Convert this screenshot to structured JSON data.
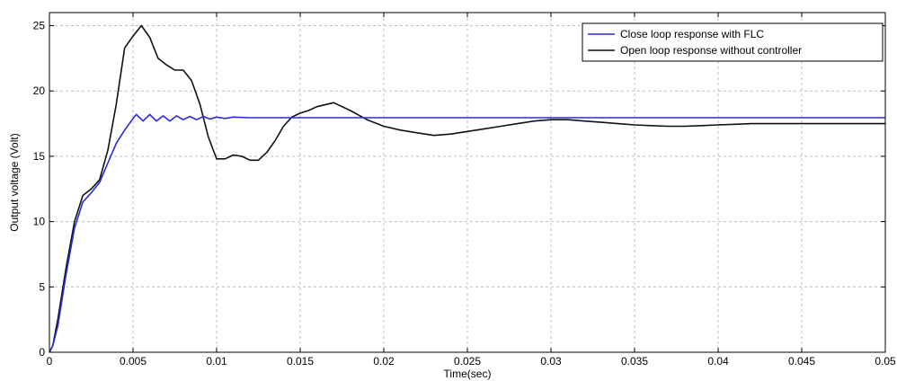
{
  "chart_data": {
    "type": "line",
    "xlabel": "Time(sec)",
    "ylabel": "Output voltage (Volt)",
    "xlim": [
      0,
      0.05
    ],
    "ylim": [
      0,
      26
    ],
    "x_ticks": [
      0,
      0.005,
      0.01,
      0.015,
      0.02,
      0.025,
      0.03,
      0.035,
      0.04,
      0.045,
      0.05
    ],
    "x_tick_labels": [
      "0",
      "0.005",
      "0.01",
      "0.015",
      "0.02",
      "0.025",
      "0.03",
      "0.035",
      "0.04",
      "0.045",
      "0.05"
    ],
    "y_ticks": [
      0,
      5,
      10,
      15,
      20,
      25
    ],
    "y_tick_labels": [
      "0",
      "5",
      "10",
      "15",
      "20",
      "25"
    ],
    "grid": true,
    "legend_position": "top-right",
    "series": [
      {
        "name": "Close loop response with FLC",
        "color": "#2b2bd6",
        "x": [
          0,
          0.0002,
          0.0005,
          0.001,
          0.0015,
          0.002,
          0.0025,
          0.003,
          0.0035,
          0.004,
          0.0045,
          0.005,
          0.0052,
          0.0056,
          0.006,
          0.0064,
          0.0068,
          0.0072,
          0.0076,
          0.008,
          0.0084,
          0.0088,
          0.0092,
          0.0096,
          0.01,
          0.0105,
          0.011,
          0.012,
          0.015,
          0.02,
          0.025,
          0.03,
          0.035,
          0.04,
          0.045,
          0.05
        ],
        "y": [
          0,
          0.5,
          2,
          6,
          9.5,
          11.5,
          12.2,
          13,
          14.5,
          16,
          17,
          17.9,
          18.2,
          17.7,
          18.2,
          17.7,
          18.1,
          17.7,
          18.1,
          17.8,
          18.05,
          17.8,
          18.05,
          17.85,
          18,
          17.9,
          18,
          17.95,
          17.95,
          17.95,
          17.95,
          17.95,
          17.95,
          17.95,
          17.95,
          17.95
        ]
      },
      {
        "name": "Open loop response without controller",
        "color": "#111111",
        "x": [
          0,
          0.0002,
          0.0005,
          0.001,
          0.0015,
          0.002,
          0.0025,
          0.003,
          0.0035,
          0.004,
          0.0045,
          0.005,
          0.0055,
          0.006,
          0.0065,
          0.007,
          0.0075,
          0.008,
          0.0085,
          0.009,
          0.0095,
          0.01,
          0.0105,
          0.011,
          0.0115,
          0.012,
          0.0125,
          0.013,
          0.0135,
          0.014,
          0.0145,
          0.015,
          0.0155,
          0.016,
          0.017,
          0.018,
          0.019,
          0.02,
          0.021,
          0.022,
          0.023,
          0.024,
          0.025,
          0.026,
          0.027,
          0.028,
          0.029,
          0.03,
          0.031,
          0.032,
          0.033,
          0.034,
          0.035,
          0.036,
          0.037,
          0.038,
          0.039,
          0.04,
          0.041,
          0.042,
          0.043,
          0.044,
          0.045,
          0.046,
          0.047,
          0.048,
          0.049,
          0.05
        ],
        "y": [
          0,
          0.5,
          2.5,
          6.5,
          10,
          12,
          12.5,
          13.2,
          15.5,
          19,
          23.3,
          24.2,
          25,
          24.1,
          22.5,
          22,
          21.6,
          21.6,
          20.8,
          19,
          16.5,
          14.8,
          14.8,
          15.1,
          15,
          14.7,
          14.7,
          15.3,
          16.2,
          17.3,
          18,
          18.3,
          18.5,
          18.8,
          19.1,
          18.5,
          17.8,
          17.3,
          17,
          16.8,
          16.6,
          16.7,
          16.9,
          17.1,
          17.3,
          17.5,
          17.7,
          17.8,
          17.8,
          17.7,
          17.6,
          17.5,
          17.4,
          17.35,
          17.3,
          17.3,
          17.35,
          17.4,
          17.45,
          17.5,
          17.5,
          17.5,
          17.5,
          17.5,
          17.5,
          17.5,
          17.5,
          17.5
        ]
      }
    ]
  }
}
